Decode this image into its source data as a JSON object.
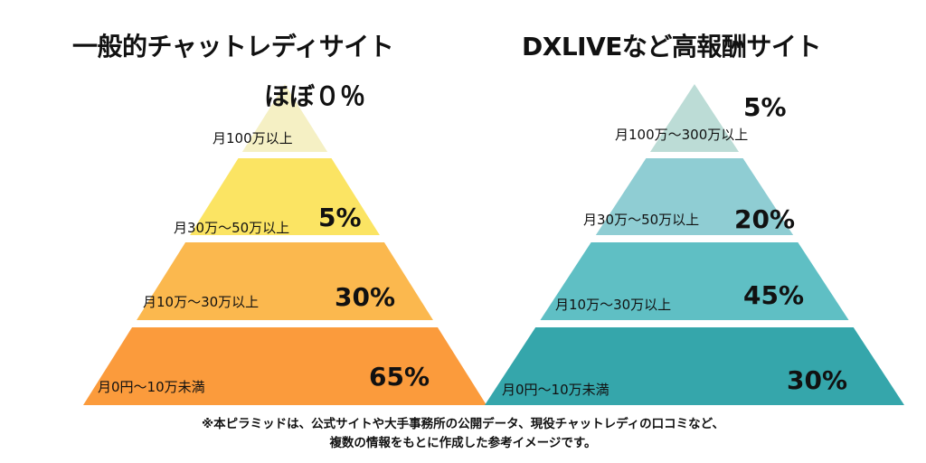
{
  "chart_data": [
    {
      "type": "pyramid",
      "title": "一般的チャットレディサイト",
      "tiers": [
        {
          "label": "月100万以上",
          "value_text": "ほぼ０％",
          "value": 0,
          "color": "#f5f0c4"
        },
        {
          "label": "月30万〜50万以上",
          "value_text": "5%",
          "value": 5,
          "color": "#fbe463"
        },
        {
          "label": "月10万〜30万以上",
          "value_text": "30%",
          "value": 30,
          "color": "#fbb84e"
        },
        {
          "label": "月0円〜10万未満",
          "value_text": "65%",
          "value": 65,
          "color": "#fb9b3c"
        }
      ]
    },
    {
      "type": "pyramid",
      "title": "DXLIVEなど高報酬サイト",
      "tiers": [
        {
          "label": "月100万〜300万以上",
          "value_text": "5%",
          "value": 5,
          "color": "#bcdcd6"
        },
        {
          "label": "月30万〜50万以上",
          "value_text": "20%",
          "value": 20,
          "color": "#8fcdd3"
        },
        {
          "label": "月10万〜30万以上",
          "value_text": "45%",
          "value": 45,
          "color": "#5fbfc4"
        },
        {
          "label": "月0円〜10万未満",
          "value_text": "30%",
          "value": 30,
          "color": "#35a6ab"
        }
      ]
    }
  ],
  "footnote": {
    "line1": "※本ピラミッドは、公式サイトや大手事務所の公開データ、現役チャットレディの口コミなど、",
    "line2": "複数の情報をもとに作成した参考イメージです。"
  }
}
